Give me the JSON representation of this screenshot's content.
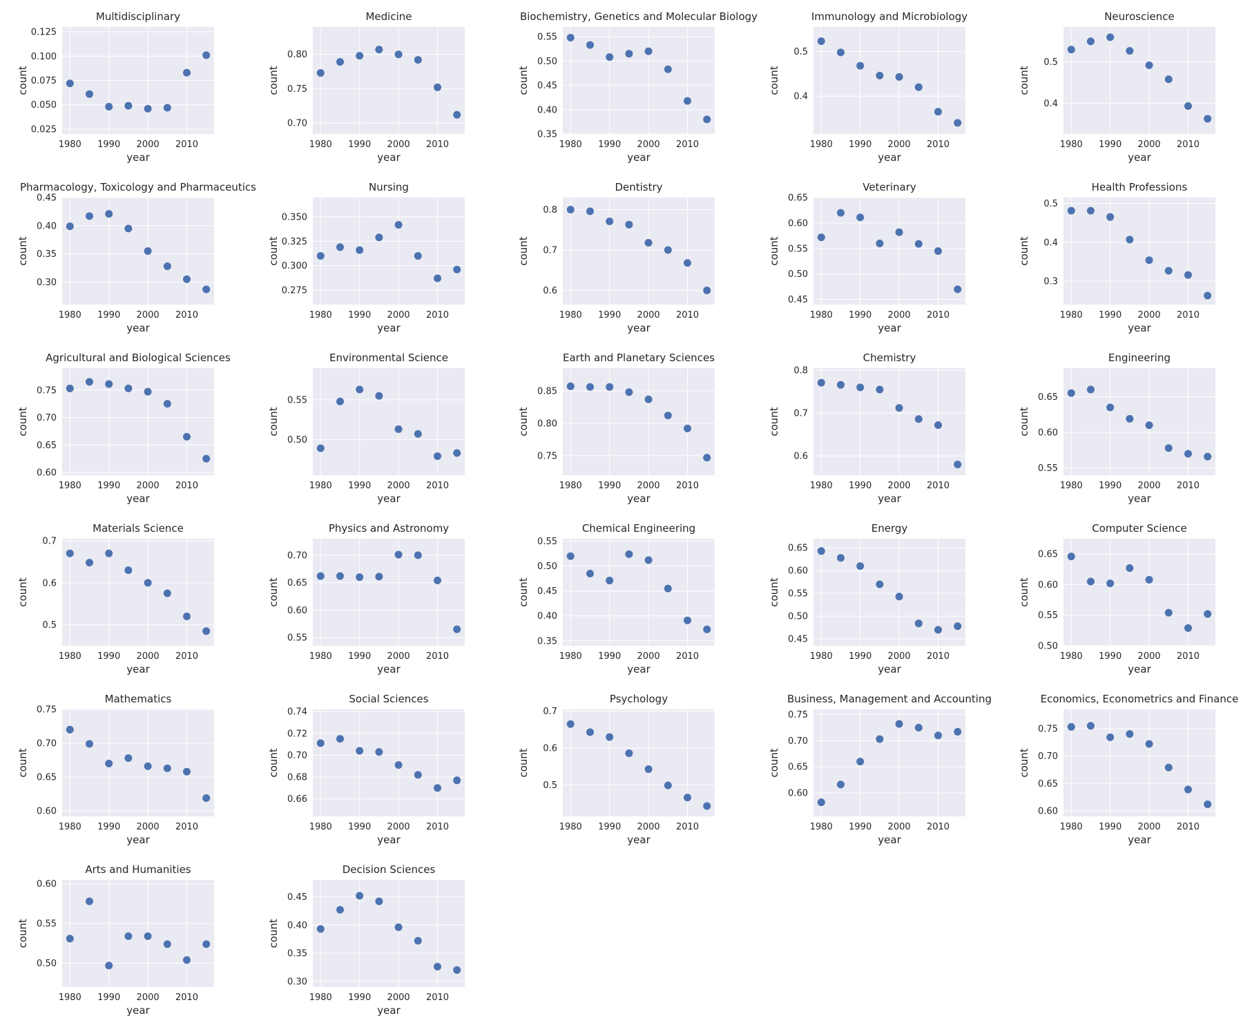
{
  "x_ticks": [
    1980,
    1990,
    2000,
    2010
  ],
  "xlabel": "year",
  "ylabel": "count",
  "point_color": "#4c72b0",
  "plot_bg": "#eaeaf2",
  "grid_color": "#ffffff",
  "chart_data": [
    {
      "type": "scatter",
      "title": "Multidisciplinary",
      "x": [
        1980,
        1985,
        1990,
        1995,
        2000,
        2005,
        2010,
        2015
      ],
      "y": [
        0.072,
        0.061,
        0.048,
        0.049,
        0.046,
        0.047,
        0.083,
        0.101
      ],
      "ylim": [
        0.02,
        0.13
      ],
      "yticks": [
        "0.025",
        "0.050",
        "0.075",
        "0.100",
        "0.125"
      ],
      "xlim": [
        1978,
        2017
      ]
    },
    {
      "type": "scatter",
      "title": "Medicine",
      "x": [
        1980,
        1985,
        1990,
        1995,
        2000,
        2005,
        2010,
        2015
      ],
      "y": [
        0.773,
        0.789,
        0.798,
        0.807,
        0.8,
        0.792,
        0.752,
        0.712
      ],
      "ylim": [
        0.684,
        0.84
      ],
      "yticks": [
        "0.70",
        "0.75",
        "0.80"
      ],
      "xlim": [
        1978,
        2017
      ]
    },
    {
      "type": "scatter",
      "title": "Biochemistry, Genetics and Molecular Biology",
      "x": [
        1980,
        1985,
        1990,
        1995,
        2000,
        2005,
        2010,
        2015
      ],
      "y": [
        0.548,
        0.533,
        0.508,
        0.515,
        0.52,
        0.483,
        0.418,
        0.38
      ],
      "ylim": [
        0.35,
        0.57
      ],
      "yticks": [
        "0.35",
        "0.40",
        "0.45",
        "0.50",
        "0.55"
      ],
      "xlim": [
        1978,
        2017
      ]
    },
    {
      "type": "scatter",
      "title": "Immunology and Microbiology",
      "x": [
        1980,
        1985,
        1990,
        1995,
        2000,
        2005,
        2010,
        2015
      ],
      "y": [
        0.523,
        0.498,
        0.468,
        0.446,
        0.443,
        0.42,
        0.365,
        0.34
      ],
      "ylim": [
        0.315,
        0.555
      ],
      "yticks": [
        "0.4",
        "0.5"
      ],
      "xlim": [
        1978,
        2017
      ]
    },
    {
      "type": "scatter",
      "title": "Neuroscience",
      "x": [
        1980,
        1985,
        1990,
        1995,
        2000,
        2005,
        2010,
        2015
      ],
      "y": [
        0.53,
        0.55,
        0.56,
        0.527,
        0.492,
        0.458,
        0.393,
        0.362
      ],
      "ylim": [
        0.325,
        0.585
      ],
      "yticks": [
        "0.4",
        "0.5"
      ],
      "xlim": [
        1978,
        2017
      ]
    },
    {
      "type": "scatter",
      "title": "Pharmacology, Toxicology and Pharmaceutics",
      "x": [
        1980,
        1985,
        1990,
        1995,
        2000,
        2005,
        2010,
        2015
      ],
      "y": [
        0.399,
        0.417,
        0.421,
        0.395,
        0.355,
        0.328,
        0.305,
        0.287
      ],
      "ylim": [
        0.26,
        0.45
      ],
      "yticks": [
        "0.30",
        "0.35",
        "0.40",
        "0.45"
      ],
      "xlim": [
        1978,
        2017
      ]
    },
    {
      "type": "scatter",
      "title": "Nursing",
      "x": [
        1980,
        1985,
        1990,
        1995,
        2000,
        2005,
        2010,
        2015
      ],
      "y": [
        0.31,
        0.319,
        0.316,
        0.329,
        0.342,
        0.31,
        0.287,
        0.296
      ],
      "ylim": [
        0.26,
        0.37
      ],
      "yticks": [
        "0.275",
        "0.300",
        "0.325",
        "0.350"
      ],
      "xlim": [
        1978,
        2017
      ]
    },
    {
      "type": "scatter",
      "title": "Dentistry",
      "x": [
        1980,
        1985,
        1990,
        1995,
        2000,
        2005,
        2010,
        2015
      ],
      "y": [
        0.8,
        0.796,
        0.771,
        0.763,
        0.718,
        0.7,
        0.668,
        0.6
      ],
      "ylim": [
        0.565,
        0.83
      ],
      "yticks": [
        "0.6",
        "0.7",
        "0.8"
      ],
      "xlim": [
        1978,
        2017
      ]
    },
    {
      "type": "scatter",
      "title": "Veterinary",
      "x": [
        1980,
        1985,
        1990,
        1995,
        2000,
        2005,
        2010,
        2015
      ],
      "y": [
        0.572,
        0.62,
        0.611,
        0.56,
        0.582,
        0.559,
        0.545,
        0.47
      ],
      "ylim": [
        0.44,
        0.65
      ],
      "yticks": [
        "0.45",
        "0.50",
        "0.55",
        "0.60",
        "0.65"
      ],
      "xlim": [
        1978,
        2017
      ]
    },
    {
      "type": "scatter",
      "title": "Health Professions",
      "x": [
        1980,
        1985,
        1990,
        1995,
        2000,
        2005,
        2010,
        2015
      ],
      "y": [
        0.481,
        0.481,
        0.465,
        0.407,
        0.354,
        0.327,
        0.316,
        0.263
      ],
      "ylim": [
        0.24,
        0.515
      ],
      "yticks": [
        "0.3",
        "0.4",
        "0.5"
      ],
      "xlim": [
        1978,
        2017
      ]
    },
    {
      "type": "scatter",
      "title": "Agricultural and Biological Sciences",
      "x": [
        1980,
        1985,
        1990,
        1995,
        2000,
        2005,
        2010,
        2015
      ],
      "y": [
        0.753,
        0.765,
        0.761,
        0.753,
        0.747,
        0.725,
        0.665,
        0.625
      ],
      "ylim": [
        0.595,
        0.79
      ],
      "yticks": [
        "0.60",
        "0.65",
        "0.70",
        "0.75"
      ],
      "xlim": [
        1978,
        2017
      ]
    },
    {
      "type": "scatter",
      "title": "Environmental Science",
      "x": [
        1980,
        1985,
        1990,
        1995,
        2000,
        2005,
        2010,
        2015
      ],
      "y": [
        0.489,
        0.548,
        0.563,
        0.555,
        0.513,
        0.507,
        0.479,
        0.483
      ],
      "ylim": [
        0.455,
        0.59
      ],
      "yticks": [
        "0.50",
        "0.55"
      ],
      "xlim": [
        1978,
        2017
      ]
    },
    {
      "type": "scatter",
      "title": "Earth and Planetary Sciences",
      "x": [
        1980,
        1985,
        1990,
        1995,
        2000,
        2005,
        2010,
        2015
      ],
      "y": [
        0.857,
        0.856,
        0.856,
        0.848,
        0.837,
        0.812,
        0.792,
        0.747
      ],
      "ylim": [
        0.72,
        0.885
      ],
      "yticks": [
        "0.75",
        "0.80",
        "0.85"
      ],
      "xlim": [
        1978,
        2017
      ]
    },
    {
      "type": "scatter",
      "title": "Chemistry",
      "x": [
        1980,
        1985,
        1990,
        1995,
        2000,
        2005,
        2010,
        2015
      ],
      "y": [
        0.771,
        0.766,
        0.76,
        0.755,
        0.712,
        0.686,
        0.672,
        0.58
      ],
      "ylim": [
        0.555,
        0.805
      ],
      "yticks": [
        "0.6",
        "0.7",
        "0.8"
      ],
      "xlim": [
        1978,
        2017
      ]
    },
    {
      "type": "scatter",
      "title": "Engineering",
      "x": [
        1980,
        1985,
        1990,
        1995,
        2000,
        2005,
        2010,
        2015
      ],
      "y": [
        0.655,
        0.66,
        0.635,
        0.619,
        0.61,
        0.578,
        0.57,
        0.566
      ],
      "ylim": [
        0.54,
        0.69
      ],
      "yticks": [
        "0.55",
        "0.60",
        "0.65"
      ],
      "xlim": [
        1978,
        2017
      ]
    },
    {
      "type": "scatter",
      "title": "Materials Science",
      "x": [
        1980,
        1985,
        1990,
        1995,
        2000,
        2005,
        2010,
        2015
      ],
      "y": [
        0.67,
        0.648,
        0.67,
        0.63,
        0.6,
        0.575,
        0.52,
        0.485
      ],
      "ylim": [
        0.45,
        0.705
      ],
      "yticks": [
        "0.5",
        "0.6",
        "0.7"
      ],
      "xlim": [
        1978,
        2017
      ]
    },
    {
      "type": "scatter",
      "title": "Physics and Astronomy",
      "x": [
        1980,
        1985,
        1990,
        1995,
        2000,
        2005,
        2010,
        2015
      ],
      "y": [
        0.662,
        0.662,
        0.66,
        0.661,
        0.701,
        0.7,
        0.654,
        0.565
      ],
      "ylim": [
        0.535,
        0.73
      ],
      "yticks": [
        "0.55",
        "0.60",
        "0.65",
        "0.70"
      ],
      "xlim": [
        1978,
        2017
      ]
    },
    {
      "type": "scatter",
      "title": "Chemical Engineering",
      "x": [
        1980,
        1985,
        1990,
        1995,
        2000,
        2005,
        2010,
        2015
      ],
      "y": [
        0.52,
        0.485,
        0.471,
        0.524,
        0.512,
        0.455,
        0.391,
        0.373
      ],
      "ylim": [
        0.34,
        0.555
      ],
      "yticks": [
        "0.35",
        "0.40",
        "0.45",
        "0.50",
        "0.55"
      ],
      "xlim": [
        1978,
        2017
      ]
    },
    {
      "type": "scatter",
      "title": "Energy",
      "x": [
        1980,
        1985,
        1990,
        1995,
        2000,
        2005,
        2010,
        2015
      ],
      "y": [
        0.643,
        0.628,
        0.61,
        0.57,
        0.543,
        0.484,
        0.47,
        0.478
      ],
      "ylim": [
        0.435,
        0.67
      ],
      "yticks": [
        "0.45",
        "0.50",
        "0.55",
        "0.60",
        "0.65"
      ],
      "xlim": [
        1978,
        2017
      ]
    },
    {
      "type": "scatter",
      "title": "Computer Science",
      "x": [
        1980,
        1985,
        1990,
        1995,
        2000,
        2005,
        2010,
        2015
      ],
      "y": [
        0.646,
        0.605,
        0.602,
        0.627,
        0.608,
        0.554,
        0.529,
        0.552
      ],
      "ylim": [
        0.5,
        0.675
      ],
      "yticks": [
        "0.50",
        "0.55",
        "0.60",
        "0.65"
      ],
      "xlim": [
        1978,
        2017
      ]
    },
    {
      "type": "scatter",
      "title": "Mathematics",
      "x": [
        1980,
        1985,
        1990,
        1995,
        2000,
        2005,
        2010,
        2015
      ],
      "y": [
        0.72,
        0.699,
        0.67,
        0.678,
        0.666,
        0.663,
        0.658,
        0.619
      ],
      "ylim": [
        0.592,
        0.75
      ],
      "yticks": [
        "0.60",
        "0.65",
        "0.70",
        "0.75"
      ],
      "xlim": [
        1978,
        2017
      ]
    },
    {
      "type": "scatter",
      "title": "Social Sciences",
      "x": [
        1980,
        1985,
        1990,
        1995,
        2000,
        2005,
        2010,
        2015
      ],
      "y": [
        0.711,
        0.715,
        0.704,
        0.703,
        0.691,
        0.682,
        0.67,
        0.677
      ],
      "ylim": [
        0.644,
        0.742
      ],
      "yticks": [
        "0.66",
        "0.68",
        "0.70",
        "0.72",
        "0.74"
      ],
      "xlim": [
        1978,
        2017
      ]
    },
    {
      "type": "scatter",
      "title": "Psychology",
      "x": [
        1980,
        1985,
        1990,
        1995,
        2000,
        2005,
        2010,
        2015
      ],
      "y": [
        0.665,
        0.643,
        0.63,
        0.586,
        0.543,
        0.499,
        0.466,
        0.443
      ],
      "ylim": [
        0.415,
        0.705
      ],
      "yticks": [
        "0.5",
        "0.6",
        "0.7"
      ],
      "xlim": [
        1978,
        2017
      ]
    },
    {
      "type": "scatter",
      "title": "Business, Management and Accounting",
      "x": [
        1980,
        1985,
        1990,
        1995,
        2000,
        2005,
        2010,
        2015
      ],
      "y": [
        0.582,
        0.616,
        0.66,
        0.703,
        0.732,
        0.725,
        0.71,
        0.717
      ],
      "ylim": [
        0.555,
        0.76
      ],
      "yticks": [
        "0.60",
        "0.65",
        "0.70",
        "0.75"
      ],
      "xlim": [
        1978,
        2017
      ]
    },
    {
      "type": "scatter",
      "title": "Economics, Econometrics and Finance",
      "x": [
        1980,
        1985,
        1990,
        1995,
        2000,
        2005,
        2010,
        2015
      ],
      "y": [
        0.753,
        0.755,
        0.734,
        0.74,
        0.722,
        0.679,
        0.639,
        0.612
      ],
      "ylim": [
        0.59,
        0.785
      ],
      "yticks": [
        "0.60",
        "0.65",
        "0.70",
        "0.75"
      ],
      "xlim": [
        1978,
        2017
      ]
    },
    {
      "type": "scatter",
      "title": "Arts and Humanities",
      "x": [
        1980,
        1985,
        1990,
        1995,
        2000,
        2005,
        2010,
        2015
      ],
      "y": [
        0.531,
        0.578,
        0.497,
        0.534,
        0.534,
        0.524,
        0.504,
        0.524
      ],
      "ylim": [
        0.47,
        0.605
      ],
      "yticks": [
        "0.50",
        "0.55",
        "0.60"
      ],
      "xlim": [
        1978,
        2017
      ]
    },
    {
      "type": "scatter",
      "title": "Decision Sciences",
      "x": [
        1980,
        1985,
        1990,
        1995,
        2000,
        2005,
        2010,
        2015
      ],
      "y": [
        0.393,
        0.427,
        0.452,
        0.442,
        0.396,
        0.372,
        0.326,
        0.32
      ],
      "ylim": [
        0.29,
        0.48
      ],
      "yticks": [
        "0.30",
        "0.35",
        "0.40",
        "0.45"
      ],
      "xlim": [
        1978,
        2017
      ]
    }
  ]
}
